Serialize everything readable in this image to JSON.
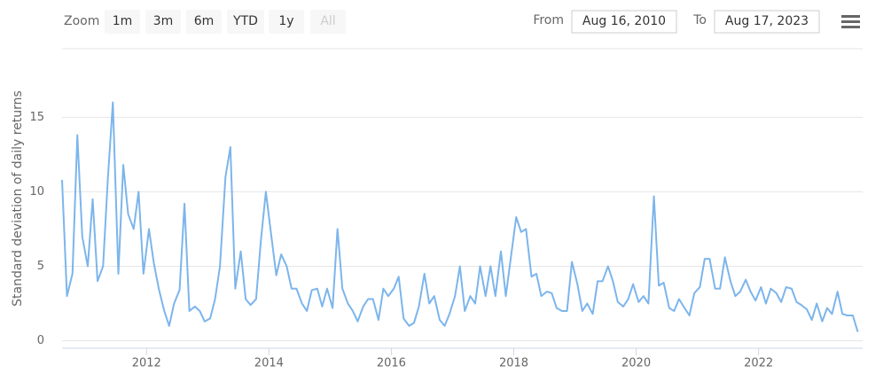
{
  "toolbar": {
    "zoom_label": "Zoom",
    "buttons": [
      "1m",
      "3m",
      "6m",
      "YTD",
      "1y",
      "All"
    ],
    "from_label": "From",
    "from_value": "Aug 16, 2010",
    "to_label": "To",
    "to_value": "Aug 17, 2023"
  },
  "chart_data": {
    "type": "line",
    "y_label": "Standard deviation of daily returns",
    "xlim": [
      2010.62,
      2023.7
    ],
    "xticks": [
      2012,
      2014,
      2016,
      2018,
      2020,
      2022
    ],
    "ylim": [
      -0.5,
      19.6
    ],
    "yticks": [
      0,
      5,
      10,
      15
    ],
    "grid": true,
    "series": [
      {
        "color": "#7cb5ec",
        "x": [
          2010.62,
          2010.7,
          2010.79,
          2010.87,
          2010.95,
          2011.04,
          2011.12,
          2011.2,
          2011.29,
          2011.37,
          2011.45,
          2011.54,
          2011.62,
          2011.7,
          2011.79,
          2011.87,
          2011.95,
          2012.04,
          2012.12,
          2012.2,
          2012.29,
          2012.37,
          2012.45,
          2012.54,
          2012.62,
          2012.7,
          2012.79,
          2012.87,
          2012.95,
          2013.04,
          2013.12,
          2013.2,
          2013.29,
          2013.37,
          2013.45,
          2013.54,
          2013.62,
          2013.7,
          2013.79,
          2013.87,
          2013.95,
          2014.04,
          2014.12,
          2014.2,
          2014.29,
          2014.37,
          2014.45,
          2014.54,
          2014.62,
          2014.7,
          2014.79,
          2014.87,
          2014.95,
          2015.04,
          2015.12,
          2015.2,
          2015.29,
          2015.37,
          2015.45,
          2015.54,
          2015.62,
          2015.7,
          2015.79,
          2015.87,
          2015.95,
          2016.04,
          2016.12,
          2016.2,
          2016.29,
          2016.37,
          2016.45,
          2016.54,
          2016.62,
          2016.7,
          2016.79,
          2016.87,
          2016.95,
          2017.04,
          2017.12,
          2017.2,
          2017.29,
          2017.37,
          2017.45,
          2017.54,
          2017.62,
          2017.7,
          2017.79,
          2017.87,
          2017.95,
          2018.04,
          2018.12,
          2018.2,
          2018.29,
          2018.37,
          2018.45,
          2018.54,
          2018.62,
          2018.7,
          2018.79,
          2018.87,
          2018.95,
          2019.04,
          2019.12,
          2019.2,
          2019.29,
          2019.37,
          2019.45,
          2019.54,
          2019.62,
          2019.7,
          2019.79,
          2019.87,
          2019.95,
          2020.04,
          2020.12,
          2020.2,
          2020.29,
          2020.37,
          2020.45,
          2020.54,
          2020.62,
          2020.7,
          2020.79,
          2020.87,
          2020.95,
          2021.04,
          2021.12,
          2021.2,
          2021.29,
          2021.37,
          2021.45,
          2021.54,
          2021.62,
          2021.7,
          2021.79,
          2021.87,
          2021.95,
          2022.04,
          2022.12,
          2022.2,
          2022.29,
          2022.37,
          2022.45,
          2022.54,
          2022.62,
          2022.7,
          2022.79,
          2022.87,
          2022.95,
          2023.04,
          2023.12,
          2023.2,
          2023.29,
          2023.37,
          2023.45,
          2023.54,
          2023.62
        ],
        "values": [
          10.8,
          3,
          4.5,
          13.8,
          7,
          5,
          9.5,
          4,
          5,
          11,
          16,
          4.5,
          11.8,
          8.5,
          7.5,
          10,
          4.5,
          7.5,
          5.2,
          3.5,
          2,
          1,
          2.5,
          3.4,
          9.2,
          2,
          2.3,
          2,
          1.3,
          1.5,
          2.8,
          5,
          11,
          13,
          3.5,
          6,
          2.8,
          2.4,
          2.8,
          6.8,
          10,
          7,
          4.4,
          5.8,
          5,
          3.5,
          3.5,
          2.5,
          2,
          3.4,
          3.5,
          2.3,
          3.5,
          2.2,
          7.5,
          3.5,
          2.5,
          2,
          1.3,
          2.3,
          2.8,
          2.8,
          1.4,
          3.5,
          3,
          3.5,
          4.3,
          1.5,
          1,
          1.2,
          2.3,
          4.5,
          2.5,
          3,
          1.4,
          1,
          1.8,
          3,
          5,
          2,
          3,
          2.5,
          5,
          3,
          5,
          3,
          6,
          3,
          5.5,
          8.3,
          7.3,
          7.5,
          4.3,
          4.5,
          3,
          3.3,
          3.2,
          2.2,
          2,
          2,
          5.3,
          3.8,
          2,
          2.5,
          1.8,
          4,
          4,
          5,
          4,
          2.6,
          2.3,
          2.8,
          3.8,
          2.6,
          3,
          2.5,
          9.7,
          3.7,
          3.9,
          2.2,
          2,
          2.8,
          2.2,
          1.7,
          3.2,
          3.6,
          5.5,
          5.5,
          3.5,
          3.5,
          5.6,
          4,
          3,
          3.3,
          4.1,
          3.3,
          2.7,
          3.6,
          2.5,
          3.5,
          3.2,
          2.6,
          3.6,
          3.5,
          2.6,
          2.4,
          2.1,
          1.4,
          2.5,
          1.3,
          2.2,
          1.8,
          3.3,
          1.8,
          1.7,
          1.7,
          0.6
        ]
      }
    ]
  }
}
